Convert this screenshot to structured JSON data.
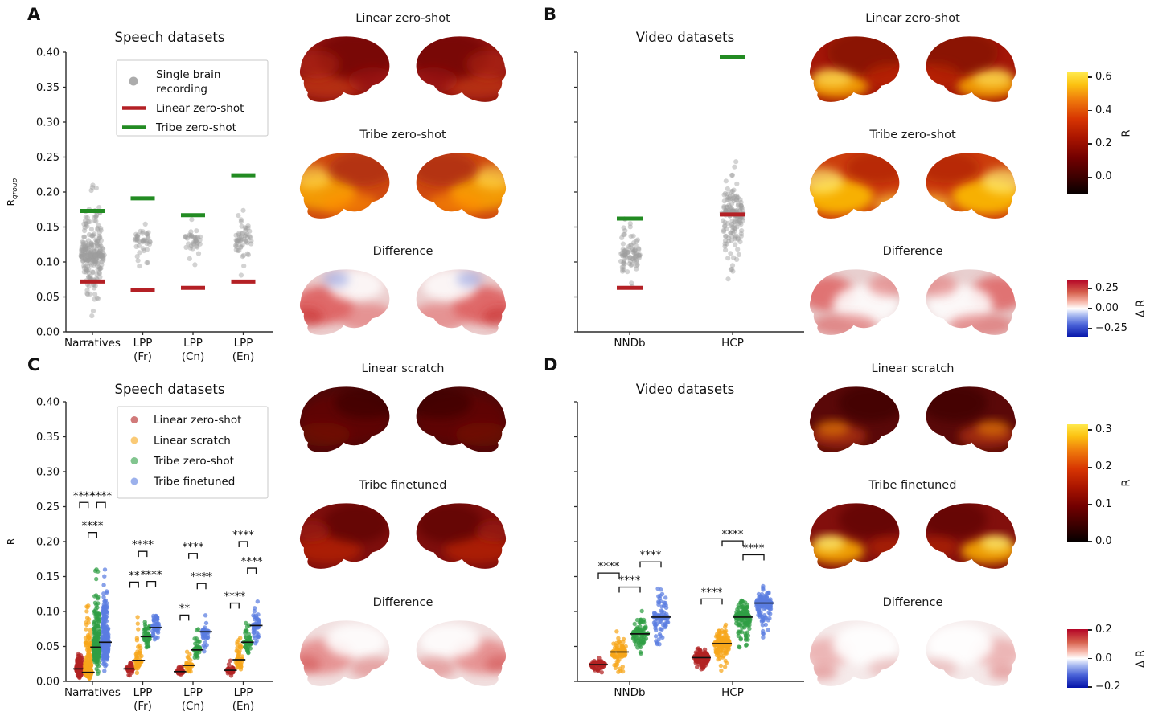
{
  "figure": {
    "panel_letters": [
      "A",
      "B",
      "C",
      "D"
    ],
    "brain_columns": [
      {
        "id": "speech-zero-shot",
        "rows": [
          {
            "label": "Linear zero-shot"
          },
          {
            "label": "Tribe zero-shot"
          },
          {
            "label": "Difference"
          }
        ]
      },
      {
        "id": "video-zero-shot",
        "rows": [
          {
            "label": "Linear zero-shot"
          },
          {
            "label": "Tribe zero-shot"
          },
          {
            "label": "Difference"
          }
        ]
      },
      {
        "id": "speech-trained",
        "rows": [
          {
            "label": "Linear scratch"
          },
          {
            "label": "Tribe finetuned"
          },
          {
            "label": "Difference"
          }
        ]
      },
      {
        "id": "video-trained",
        "rows": [
          {
            "label": "Linear scratch"
          },
          {
            "label": "Tribe finetuned"
          },
          {
            "label": "Difference"
          }
        ]
      }
    ],
    "colorbars": [
      {
        "id": "r-top",
        "label": "R",
        "scale": [
          -0.105,
          0.63
        ],
        "ticks": [
          {
            "value": 0.6,
            "label": "0.6"
          },
          {
            "value": 0.4,
            "label": "0.4"
          },
          {
            "value": 0.2,
            "label": "0.2"
          },
          {
            "value": 0.0,
            "label": "0.0"
          }
        ]
      },
      {
        "id": "delta-r-top",
        "label": "Δ R",
        "scale": [
          -0.36,
          0.36
        ],
        "ticks": [
          {
            "value": 0.25,
            "label": "0.25"
          },
          {
            "value": 0.0,
            "label": "0.00"
          },
          {
            "value": -0.25,
            "label": "−0.25"
          }
        ]
      },
      {
        "id": "r-bottom",
        "label": "R",
        "scale": [
          0.0,
          0.315
        ],
        "ticks": [
          {
            "value": 0.3,
            "label": "0.3"
          },
          {
            "value": 0.2,
            "label": "0.2"
          },
          {
            "value": 0.1,
            "label": "0.1"
          },
          {
            "value": 0.0,
            "label": "0.0"
          }
        ]
      },
      {
        "id": "delta-r-bottom",
        "label": "Δ R",
        "scale": [
          -0.205,
          0.205
        ],
        "ticks": [
          {
            "value": 0.2,
            "label": "0.2"
          },
          {
            "value": 0.0,
            "label": "0.0"
          },
          {
            "value": -0.2,
            "label": "−0.2"
          }
        ]
      }
    ],
    "colors": {
      "single_recording_dot": "#9e9e9e",
      "linear_zero_shot_line": "#b42025",
      "tribe_zero_shot_line": "#228b22",
      "series": {
        "Linear zero-shot": "#b22222",
        "Linear scratch": "#f7a61b",
        "Tribe zero-shot": "#2f9e44",
        "Tribe finetuned": "#5a7de0"
      },
      "median_line": "#111111",
      "colorbar_hot_endpoints": [
        "#050000",
        "#ffe94d"
      ],
      "colorbar_diverging_endpoints": [
        "#b40426",
        "#ffffff",
        "#0413a8"
      ]
    }
  },
  "chart_data": [
    {
      "panel": "A",
      "type": "scatter",
      "title": "Speech datasets",
      "ylabel": "R",
      "ylabel_subscript": "group",
      "ylim": [
        0.0,
        0.4
      ],
      "ytick_step": 0.05,
      "show_ytick_labels": true,
      "grid": false,
      "legend": {
        "position": "upper right",
        "items": [
          {
            "label": "Single brain recording",
            "marker": "dot",
            "color_key": "single_recording_dot"
          },
          {
            "label": "Linear zero-shot",
            "marker": "line",
            "color_key": "linear_zero_shot_line"
          },
          {
            "label": "Tribe zero-shot",
            "marker": "line",
            "color_key": "tribe_zero_shot_line"
          }
        ]
      },
      "categories": [
        "Narratives",
        "LPP (Fr)",
        "LPP (Cn)",
        "LPP (En)"
      ],
      "groups": [
        {
          "category": "Narratives",
          "n_recordings": 260,
          "recordings_min": 0.01,
          "recordings_max": 0.245,
          "recordings_median": 0.11,
          "linear_zero_shot": 0.072,
          "tribe_zero_shot": 0.173
        },
        {
          "category": "LPP (Fr)",
          "n_recordings": 42,
          "recordings_min": 0.07,
          "recordings_max": 0.17,
          "recordings_median": 0.13,
          "linear_zero_shot": 0.06,
          "tribe_zero_shot": 0.191
        },
        {
          "category": "LPP (Cn)",
          "n_recordings": 38,
          "recordings_min": 0.055,
          "recordings_max": 0.18,
          "recordings_median": 0.135,
          "linear_zero_shot": 0.063,
          "tribe_zero_shot": 0.167
        },
        {
          "category": "LPP (En)",
          "n_recordings": 55,
          "recordings_min": 0.04,
          "recordings_max": 0.2,
          "recordings_median": 0.13,
          "linear_zero_shot": 0.072,
          "tribe_zero_shot": 0.224
        }
      ]
    },
    {
      "panel": "B",
      "type": "scatter",
      "title": "Video datasets",
      "ylabel": "",
      "ylim": [
        0.0,
        0.4
      ],
      "ytick_step": 0.05,
      "show_ytick_labels": false,
      "grid": false,
      "categories": [
        "NNDb",
        "HCP"
      ],
      "groups": [
        {
          "category": "NNDb",
          "n_recordings": 85,
          "recordings_min": 0.045,
          "recordings_max": 0.2,
          "recordings_median": 0.11,
          "linear_zero_shot": 0.063,
          "tribe_zero_shot": 0.162
        },
        {
          "category": "HCP",
          "n_recordings": 160,
          "recordings_min": 0.04,
          "recordings_max": 0.26,
          "recordings_median": 0.17,
          "linear_zero_shot": 0.168,
          "tribe_zero_shot": 0.393
        }
      ]
    },
    {
      "panel": "C",
      "type": "grouped-swarm",
      "title": "Speech datasets",
      "ylabel": "R",
      "ylim": [
        0.0,
        0.4
      ],
      "ytick_step": 0.05,
      "show_ytick_labels": true,
      "grid": false,
      "series": [
        "Linear zero-shot",
        "Linear scratch",
        "Tribe zero-shot",
        "Tribe finetuned"
      ],
      "legend": {
        "position": "upper right",
        "items": [
          "Linear zero-shot",
          "Linear scratch",
          "Tribe zero-shot",
          "Tribe finetuned"
        ]
      },
      "categories": [
        "Narratives",
        "LPP (Fr)",
        "LPP (Cn)",
        "LPP (En)"
      ],
      "groups": [
        {
          "category": "Narratives",
          "swarms": [
            {
              "n": 260,
              "min": 0.002,
              "max": 0.052,
              "median": 0.018
            },
            {
              "n": 260,
              "min": 0.001,
              "max": 0.15,
              "median": 0.013
            },
            {
              "n": 260,
              "min": 0.002,
              "max": 0.19,
              "median": 0.049
            },
            {
              "n": 260,
              "min": 0.002,
              "max": 0.2,
              "median": 0.056
            }
          ],
          "significance": [
            {
              "between": [
                0,
                1
              ],
              "stars": "****",
              "y": 0.256
            },
            {
              "between": [
                2,
                3
              ],
              "stars": "****",
              "y": 0.256
            },
            {
              "between": [
                1,
                2
              ],
              "stars": "****",
              "y": 0.213
            }
          ]
        },
        {
          "category": "LPP (Fr)",
          "swarms": [
            {
              "n": 45,
              "min": 0.004,
              "max": 0.036,
              "median": 0.018
            },
            {
              "n": 45,
              "min": 0.004,
              "max": 0.115,
              "median": 0.03
            },
            {
              "n": 45,
              "min": 0.03,
              "max": 0.11,
              "median": 0.064
            },
            {
              "n": 45,
              "min": 0.04,
              "max": 0.122,
              "median": 0.077
            }
          ],
          "significance": [
            {
              "between": [
                1,
                2
              ],
              "stars": "****",
              "y": 0.186
            },
            {
              "between": [
                0,
                1
              ],
              "stars": "**",
              "y": 0.142
            },
            {
              "between": [
                2,
                3
              ],
              "stars": "****",
              "y": 0.143
            }
          ]
        },
        {
          "category": "LPP (Cn)",
          "swarms": [
            {
              "n": 38,
              "min": 0.004,
              "max": 0.03,
              "median": 0.014
            },
            {
              "n": 38,
              "min": 0.005,
              "max": 0.07,
              "median": 0.023
            },
            {
              "n": 38,
              "min": 0.012,
              "max": 0.09,
              "median": 0.045
            },
            {
              "n": 38,
              "min": 0.03,
              "max": 0.112,
              "median": 0.071
            }
          ],
          "significance": [
            {
              "between": [
                1,
                2
              ],
              "stars": "****",
              "y": 0.183
            },
            {
              "between": [
                2,
                3
              ],
              "stars": "****",
              "y": 0.14
            },
            {
              "between": [
                0,
                1
              ],
              "stars": "**",
              "y": 0.095
            }
          ]
        },
        {
          "category": "LPP (En)",
          "swarms": [
            {
              "n": 52,
              "min": 0.004,
              "max": 0.036,
              "median": 0.016
            },
            {
              "n": 52,
              "min": 0.005,
              "max": 0.09,
              "median": 0.031
            },
            {
              "n": 52,
              "min": 0.02,
              "max": 0.1,
              "median": 0.056
            },
            {
              "n": 52,
              "min": 0.028,
              "max": 0.135,
              "median": 0.08
            }
          ],
          "significance": [
            {
              "between": [
                1,
                2
              ],
              "stars": "****",
              "y": 0.2
            },
            {
              "between": [
                2,
                3
              ],
              "stars": "****",
              "y": 0.162
            },
            {
              "between": [
                0,
                1
              ],
              "stars": "****",
              "y": 0.112
            }
          ]
        }
      ]
    },
    {
      "panel": "D",
      "type": "grouped-swarm",
      "title": "Video datasets",
      "ylabel": "",
      "ylim": [
        0.0,
        0.4
      ],
      "ytick_step": 0.05,
      "show_ytick_labels": false,
      "grid": false,
      "series": [
        "Linear zero-shot",
        "Linear scratch",
        "Tribe zero-shot",
        "Tribe finetuned"
      ],
      "categories": [
        "NNDb",
        "HCP"
      ],
      "groups": [
        {
          "category": "NNDb",
          "swarms": [
            {
              "n": 85,
              "min": 0.008,
              "max": 0.038,
              "median": 0.024
            },
            {
              "n": 85,
              "min": 0.001,
              "max": 0.085,
              "median": 0.042
            },
            {
              "n": 85,
              "min": 0.018,
              "max": 0.105,
              "median": 0.068
            },
            {
              "n": 85,
              "min": 0.02,
              "max": 0.145,
              "median": 0.092
            }
          ],
          "significance": [
            {
              "between": [
                0,
                1
              ],
              "stars": "****",
              "y": 0.155
            },
            {
              "between": [
                1,
                2
              ],
              "stars": "****",
              "y": 0.135
            },
            {
              "between": [
                2,
                3
              ],
              "stars": "****",
              "y": 0.171
            }
          ]
        },
        {
          "category": "HCP",
          "swarms": [
            {
              "n": 150,
              "min": 0.01,
              "max": 0.055,
              "median": 0.034
            },
            {
              "n": 150,
              "min": 0.005,
              "max": 0.095,
              "median": 0.054
            },
            {
              "n": 150,
              "min": 0.015,
              "max": 0.125,
              "median": 0.092
            },
            {
              "n": 150,
              "min": 0.04,
              "max": 0.145,
              "median": 0.112
            }
          ],
          "significance": [
            {
              "between": [
                0,
                1
              ],
              "stars": "****",
              "y": 0.118
            },
            {
              "between": [
                1,
                2
              ],
              "stars": "****",
              "y": 0.201
            },
            {
              "between": [
                2,
                3
              ],
              "stars": "****",
              "y": 0.181
            }
          ]
        }
      ]
    }
  ]
}
